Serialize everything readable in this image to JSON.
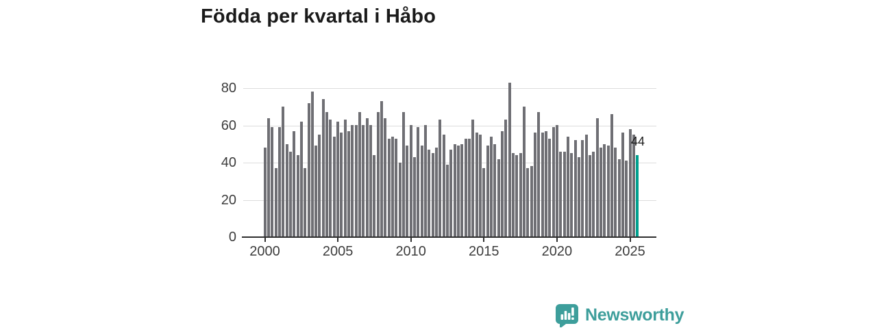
{
  "page_title": "Födda per kvartal i Håbo",
  "chart_data": {
    "type": "bar",
    "title": "Födda per kvartal i Håbo",
    "x_start": "2000-Q1",
    "x_end": "2025-Q3",
    "frequency": "quarterly",
    "values": [
      48,
      64,
      59,
      37,
      59,
      70,
      50,
      46,
      57,
      44,
      62,
      37,
      72,
      78,
      49,
      55,
      74,
      67,
      63,
      54,
      62,
      56,
      63,
      57,
      60,
      60,
      67,
      60,
      64,
      60,
      44,
      67,
      73,
      64,
      53,
      54,
      53,
      40,
      67,
      49,
      60,
      43,
      59,
      49,
      60,
      47,
      45,
      48,
      63,
      55,
      39,
      47,
      50,
      49,
      50,
      53,
      53,
      63,
      56,
      55,
      37,
      49,
      54,
      50,
      42,
      57,
      63,
      83,
      45,
      44,
      45,
      70,
      37,
      38,
      56,
      67,
      56,
      57,
      53,
      59,
      60,
      46,
      46,
      54,
      45,
      52,
      43,
      52,
      55,
      44,
      46,
      64,
      48,
      50,
      49,
      66,
      48,
      42,
      56,
      41,
      58,
      55,
      44
    ],
    "highlight": {
      "index": 102,
      "quarter": "2025-Q3",
      "value": 44,
      "label": "44"
    },
    "x_tick_labels": [
      "2000",
      "2005",
      "2010",
      "2015",
      "2020",
      "2025"
    ],
    "y_tick_labels": [
      "0",
      "20",
      "40",
      "60",
      "80"
    ],
    "y_ticks": [
      0,
      20,
      40,
      60,
      80
    ],
    "ylim": [
      0,
      87
    ],
    "grid": true,
    "legend": "none",
    "bar_color": "#6f6f74",
    "highlight_color": "#00a18f",
    "axis_text_color": "#3c3c3c",
    "grid_color": "#dcdcdc",
    "axis_line_color": "#2e2e2e"
  },
  "branding": {
    "name": "Newsworthy",
    "color": "#3d9e9b",
    "icon": "newsworthy-speech-bubble-bar-chart-icon"
  }
}
